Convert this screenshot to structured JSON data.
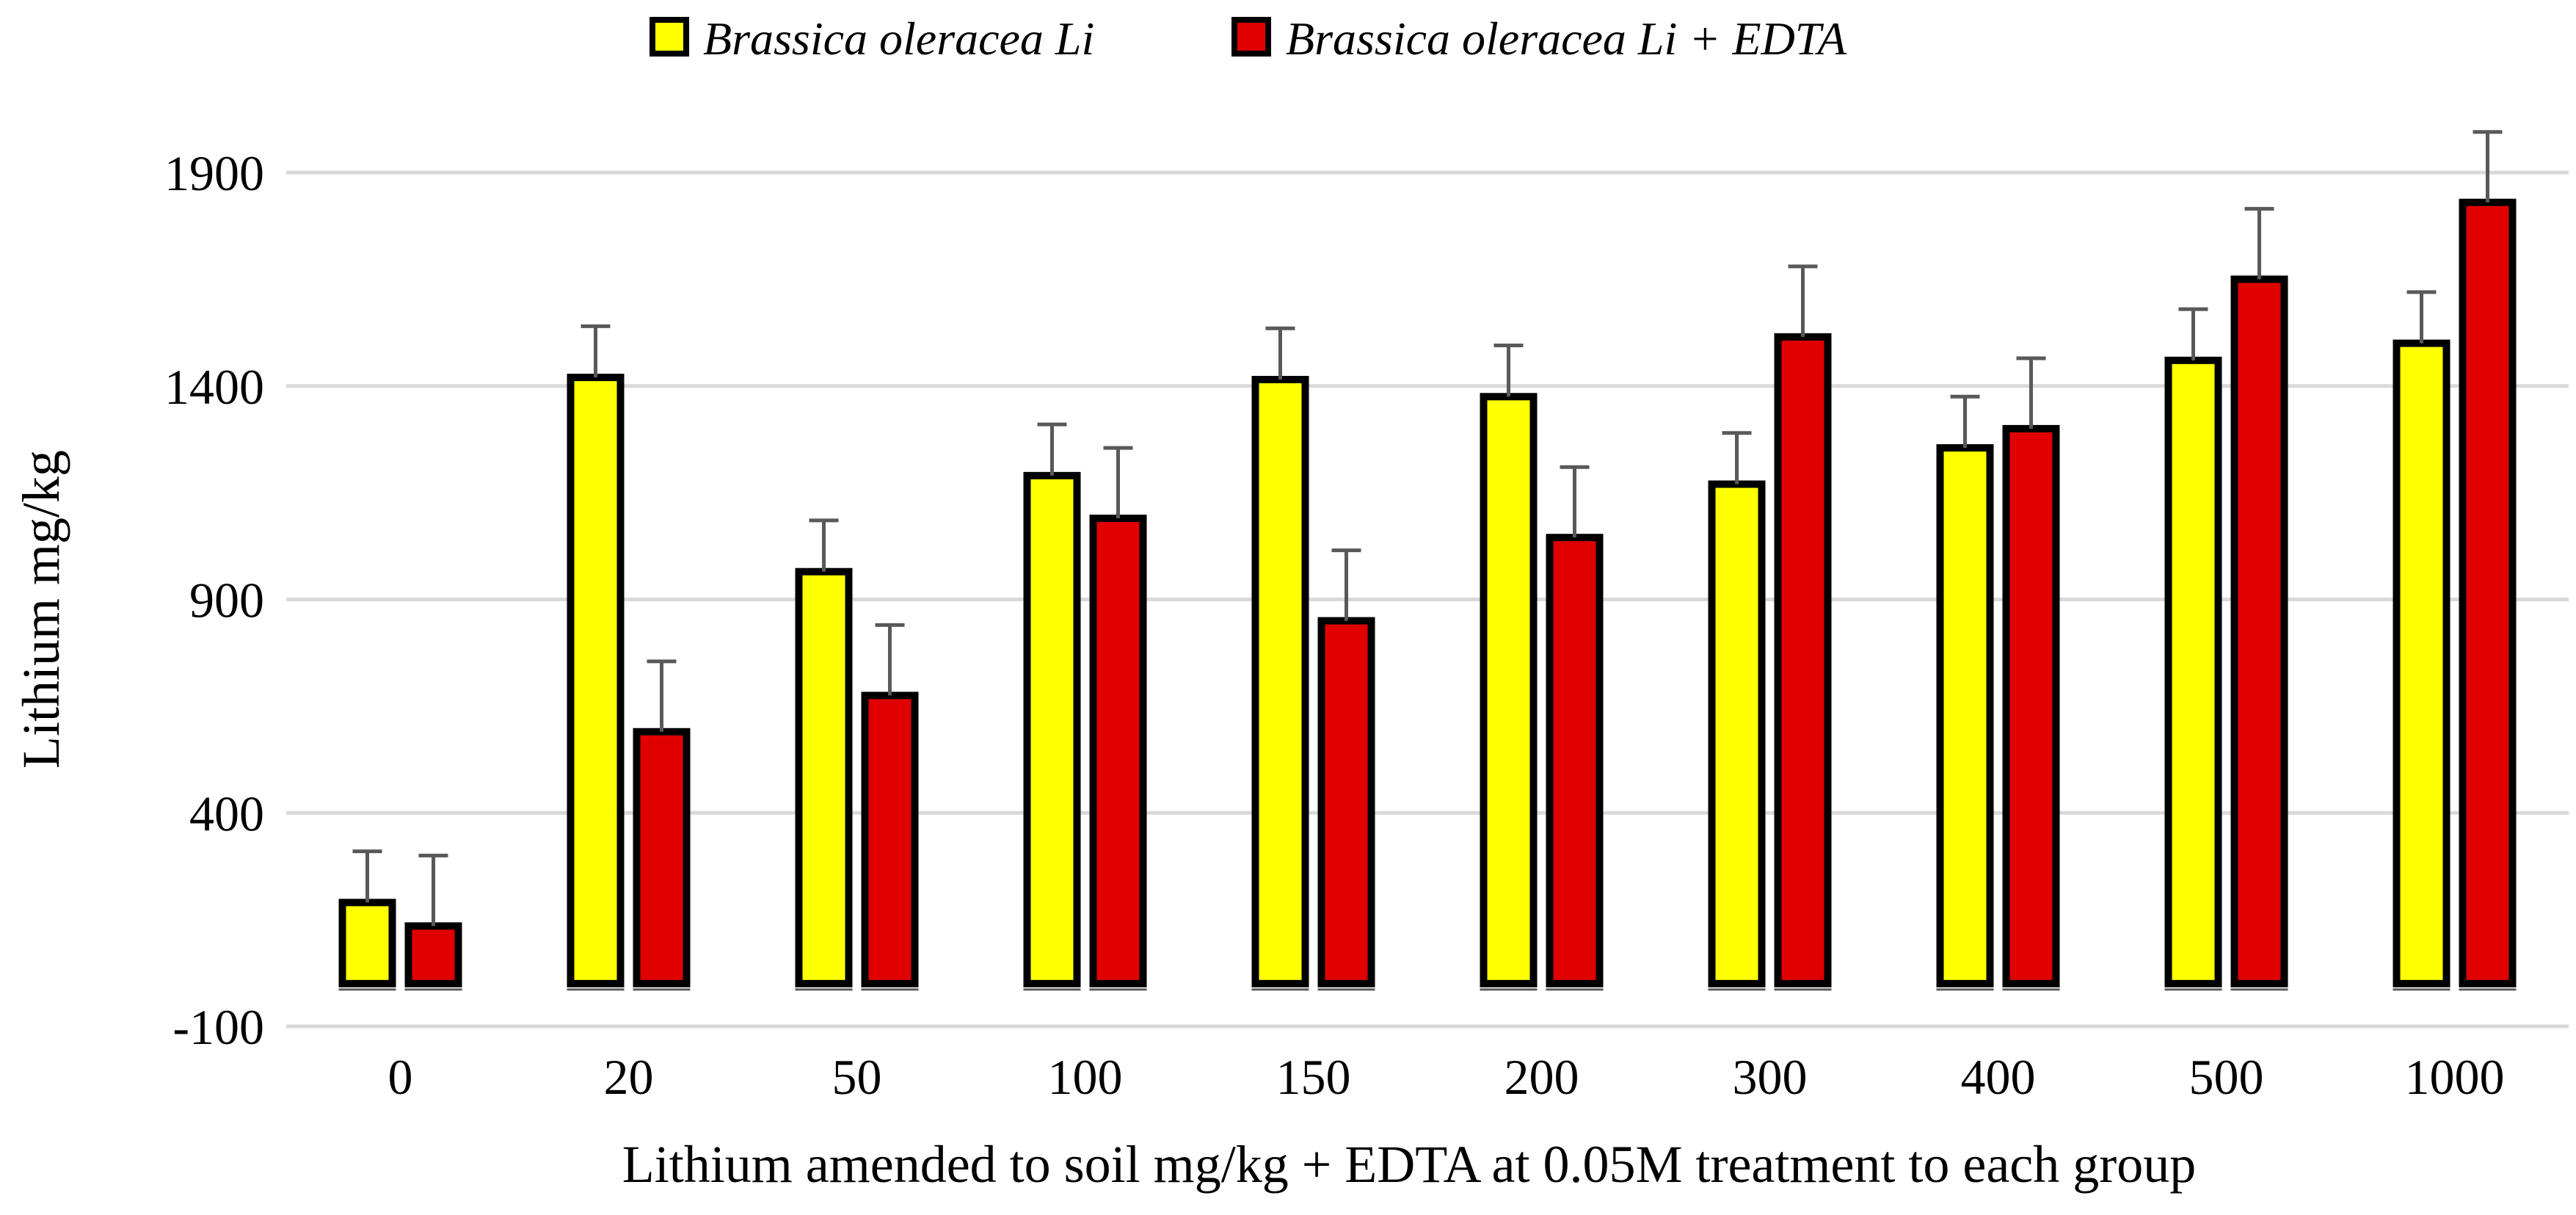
{
  "chart_data": {
    "type": "bar",
    "title": "",
    "xlabel": "Lithium amended to soil mg/kg + EDTA at 0.05M treatment to each group",
    "ylabel": "Lithium mg/kg",
    "categories": [
      "0",
      "20",
      "50",
      "100",
      "150",
      "200",
      "300",
      "400",
      "500",
      "1000"
    ],
    "ylim": [
      -100,
      1900
    ],
    "yticks": [
      -100,
      400,
      900,
      1400,
      1900
    ],
    "ytick_labels": [
      "-100",
      "400",
      "900",
      "1400",
      "1900"
    ],
    "grid": true,
    "legend_position": "top-center",
    "series": [
      {
        "name": "Brassica oleracea Li",
        "color": "#FFFF00",
        "values": [
          190,
          1420,
          965,
          1190,
          1415,
          1375,
          1170,
          1255,
          1460,
          1500
        ],
        "errors": [
          120,
          120,
          120,
          120,
          120,
          120,
          120,
          120,
          120,
          120
        ]
      },
      {
        "name": "Brassica oleracea Li + EDTA",
        "color": "#E00000",
        "values": [
          135,
          590,
          675,
          1090,
          850,
          1045,
          1515,
          1300,
          1650,
          1830
        ],
        "errors": [
          165,
          165,
          165,
          165,
          165,
          165,
          165,
          165,
          165,
          165
        ]
      }
    ],
    "colors": {
      "grid": "#D9D9D9",
      "bar_outline": "#000000",
      "error_bar": "#595959"
    }
  }
}
